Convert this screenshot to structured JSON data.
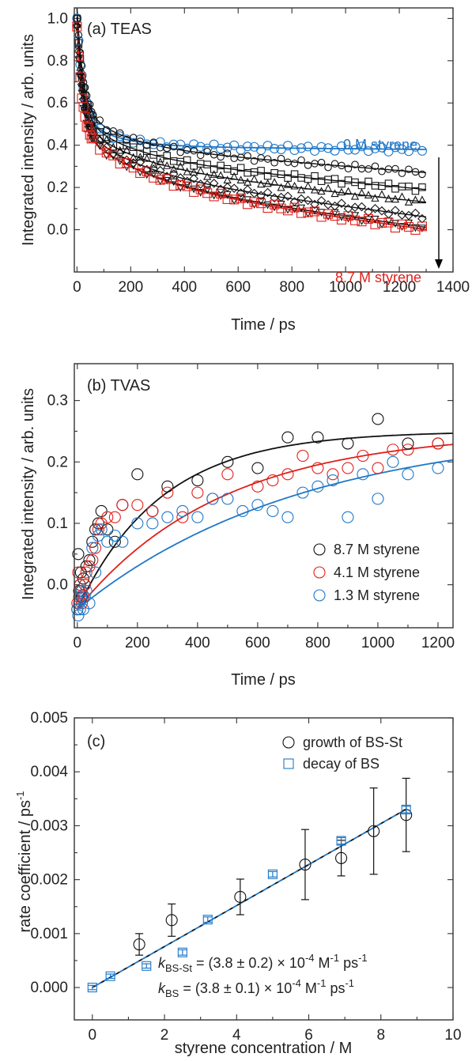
{
  "chart_data": [
    {
      "panel": "a",
      "type": "scatter",
      "panel_label": "(a) TEAS",
      "xlabel": "Time / ps",
      "ylabel": "Integrated intensity / arb. units",
      "xlim": [
        -10,
        1400
      ],
      "ylim": [
        -0.2,
        1.05
      ],
      "xticks": [
        0,
        200,
        400,
        600,
        800,
        1000,
        1200,
        1400
      ],
      "yticks": [
        0.0,
        0.2,
        0.4,
        0.6,
        0.8,
        1.0
      ],
      "ytick_labels": [
        "0.0",
        "0.2",
        "0.4",
        "0.6",
        "0.8",
        "1.0"
      ],
      "annotations": {
        "top_series": "0 M styrene",
        "bottom_series": "8.7 M styrene"
      },
      "colors": {
        "top": "#1f78c8",
        "bottom": "#e0201b",
        "middle": "#111111",
        "arrow": "#000000"
      },
      "series": [
        {
          "name": "0 M styrene",
          "marker": "circle",
          "color": "#1f78c8",
          "plateau": 0.38,
          "amp_fast": 0.47,
          "tau_fast": 22,
          "amp_slow": 0.14,
          "tau_slow": 130,
          "drift": 0.015
        },
        {
          "marker": "circle",
          "color": "#111111",
          "plateau": 0.27,
          "amp_fast": 0.47,
          "tau_fast": 22,
          "amp_slow": 0.18,
          "tau_slow": 160,
          "drift": 0.13
        },
        {
          "marker": "square",
          "color": "#111111",
          "plateau": 0.19,
          "amp_fast": 0.47,
          "tau_fast": 22,
          "amp_slow": 0.19,
          "tau_slow": 180,
          "drift": 0.16
        },
        {
          "marker": "triangle-up",
          "color": "#111111",
          "plateau": 0.13,
          "amp_fast": 0.47,
          "tau_fast": 22,
          "amp_slow": 0.2,
          "tau_slow": 200,
          "drift": 0.18
        },
        {
          "marker": "diamond",
          "color": "#111111",
          "plateau": 0.06,
          "amp_fast": 0.47,
          "tau_fast": 22,
          "amp_slow": 0.22,
          "tau_slow": 220,
          "drift": 0.21
        },
        {
          "marker": "triangle-down",
          "color": "#111111",
          "plateau": 0.01,
          "amp_fast": 0.48,
          "tau_fast": 20,
          "amp_slow": 0.24,
          "tau_slow": 240,
          "drift": 0.22
        },
        {
          "name": "8.7 M styrene",
          "marker": "square",
          "color": "#e0201b",
          "plateau": 0.0,
          "amp_fast": 0.5,
          "tau_fast": 18,
          "amp_slow": 0.25,
          "tau_slow": 250,
          "drift": 0.22
        }
      ]
    },
    {
      "panel": "b",
      "type": "scatter",
      "panel_label": "(b) TVAS",
      "xlabel": "Time / ps",
      "ylabel": "Integrated intensity / arb. units",
      "xlim": [
        -10,
        1250
      ],
      "ylim": [
        -0.07,
        0.36
      ],
      "xticks": [
        0,
        200,
        400,
        600,
        800,
        1000,
        1200
      ],
      "yticks": [
        0.0,
        0.1,
        0.2,
        0.3
      ],
      "ytick_labels": [
        "0.0",
        "0.1",
        "0.2",
        "0.3"
      ],
      "legend_position": "lower-right",
      "series": [
        {
          "name": "8.7 M styrene",
          "color": "#111111",
          "fit": {
            "y0": -0.04,
            "A": 0.29,
            "tau": 280
          },
          "points": [
            [
              0,
              -0.04
            ],
            [
              3,
              0.05
            ],
            [
              6,
              -0.01
            ],
            [
              9,
              0.0
            ],
            [
              12,
              0.02
            ],
            [
              15,
              -0.02
            ],
            [
              20,
              0.01
            ],
            [
              25,
              0.0
            ],
            [
              30,
              0.03
            ],
            [
              40,
              0.04
            ],
            [
              50,
              0.07
            ],
            [
              60,
              0.09
            ],
            [
              70,
              0.1
            ],
            [
              80,
              0.12
            ],
            [
              100,
              0.09
            ],
            [
              125,
              0.07
            ],
            [
              150,
              0.13
            ],
            [
              200,
              0.18
            ],
            [
              250,
              0.12
            ],
            [
              300,
              0.16
            ],
            [
              400,
              0.17
            ],
            [
              500,
              0.2
            ],
            [
              600,
              0.19
            ],
            [
              700,
              0.24
            ],
            [
              800,
              0.24
            ],
            [
              900,
              0.23
            ],
            [
              1000,
              0.27
            ],
            [
              1100,
              0.23
            ],
            [
              1200,
              0.23
            ]
          ]
        },
        {
          "name": "4.1 M styrene",
          "color": "#e0201b",
          "fit": {
            "y0": -0.04,
            "A": 0.29,
            "tau": 480
          },
          "points": [
            [
              0,
              -0.03
            ],
            [
              3,
              0.02
            ],
            [
              6,
              -0.02
            ],
            [
              9,
              0.0
            ],
            [
              12,
              -0.01
            ],
            [
              15,
              -0.03
            ],
            [
              20,
              -0.02
            ],
            [
              25,
              0.0
            ],
            [
              30,
              0.02
            ],
            [
              40,
              0.03
            ],
            [
              50,
              0.04
            ],
            [
              60,
              0.06
            ],
            [
              70,
              0.09
            ],
            [
              80,
              0.1
            ],
            [
              100,
              0.11
            ],
            [
              125,
              0.11
            ],
            [
              150,
              0.13
            ],
            [
              200,
              0.13
            ],
            [
              250,
              0.12
            ],
            [
              300,
              0.15
            ],
            [
              350,
              0.11
            ],
            [
              400,
              0.15
            ],
            [
              450,
              0.14
            ],
            [
              500,
              0.18
            ],
            [
              600,
              0.16
            ],
            [
              650,
              0.17
            ],
            [
              700,
              0.18
            ],
            [
              750,
              0.21
            ],
            [
              800,
              0.19
            ],
            [
              850,
              0.18
            ],
            [
              900,
              0.19
            ],
            [
              950,
              0.21
            ],
            [
              1000,
              0.19
            ],
            [
              1050,
              0.22
            ],
            [
              1100,
              0.22
            ],
            [
              1200,
              0.23
            ]
          ]
        },
        {
          "name": "1.3 M styrene",
          "color": "#1f78c8",
          "fit": {
            "y0": -0.04,
            "A": 0.3,
            "tau": 750
          },
          "points": [
            [
              0,
              -0.04
            ],
            [
              3,
              -0.05
            ],
            [
              6,
              -0.03
            ],
            [
              9,
              -0.04
            ],
            [
              12,
              -0.02
            ],
            [
              15,
              -0.01
            ],
            [
              20,
              -0.04
            ],
            [
              25,
              -0.02
            ],
            [
              30,
              -0.01
            ],
            [
              40,
              -0.03
            ],
            [
              50,
              0.06
            ],
            [
              60,
              0.02
            ],
            [
              70,
              0.08
            ],
            [
              80,
              0.09
            ],
            [
              100,
              0.07
            ],
            [
              125,
              0.08
            ],
            [
              150,
              0.07
            ],
            [
              200,
              0.1
            ],
            [
              250,
              0.1
            ],
            [
              300,
              0.11
            ],
            [
              350,
              0.12
            ],
            [
              400,
              0.11
            ],
            [
              450,
              0.14
            ],
            [
              500,
              0.14
            ],
            [
              550,
              0.12
            ],
            [
              600,
              0.13
            ],
            [
              650,
              0.12
            ],
            [
              700,
              0.11
            ],
            [
              750,
              0.15
            ],
            [
              800,
              0.16
            ],
            [
              850,
              0.17
            ],
            [
              900,
              0.11
            ],
            [
              950,
              0.18
            ],
            [
              1000,
              0.14
            ],
            [
              1050,
              0.2
            ],
            [
              1100,
              0.18
            ],
            [
              1200,
              0.19
            ]
          ]
        }
      ]
    },
    {
      "panel": "c",
      "type": "scatter",
      "panel_label": "(c)",
      "xlabel": "styrene concentration / M",
      "ylabel": "rate coefficient / ps",
      "ylabel_superscript": "-1",
      "xlim": [
        -0.5,
        10
      ],
      "ylim": [
        -0.0006,
        0.005
      ],
      "xticks": [
        0,
        2,
        4,
        6,
        8,
        10
      ],
      "yticks": [
        0.0,
        0.001,
        0.002,
        0.003,
        0.004,
        0.005
      ],
      "ytick_labels": [
        "0.000",
        "0.001",
        "0.002",
        "0.003",
        "0.004",
        "0.005"
      ],
      "legend_position": "top-right",
      "fit_slope": 0.00038,
      "series": [
        {
          "name": "growth of BS-St",
          "marker": "circle",
          "color": "#111111",
          "points": [
            {
              "x": 1.3,
              "y": 0.0008,
              "err": 0.0002
            },
            {
              "x": 2.2,
              "y": 0.00125,
              "err": 0.0003
            },
            {
              "x": 4.1,
              "y": 0.00168,
              "err": 0.00033
            },
            {
              "x": 5.9,
              "y": 0.00228,
              "err": 0.00065
            },
            {
              "x": 6.9,
              "y": 0.0024,
              "err": 0.00033
            },
            {
              "x": 7.8,
              "y": 0.0029,
              "err": 0.0008
            },
            {
              "x": 8.7,
              "y": 0.0032,
              "err": 0.00068
            }
          ]
        },
        {
          "name": "decay of BS",
          "marker": "square",
          "color": "#1f78c8",
          "points": [
            {
              "x": 0.0,
              "y": 0.0,
              "err": 4e-05
            },
            {
              "x": 0.5,
              "y": 0.00021,
              "err": 4e-05
            },
            {
              "x": 1.5,
              "y": 0.0004,
              "err": 4e-05
            },
            {
              "x": 2.5,
              "y": 0.00065,
              "err": 5e-05
            },
            {
              "x": 3.2,
              "y": 0.00126,
              "err": 5e-05
            },
            {
              "x": 5.0,
              "y": 0.0021,
              "err": 5e-05
            },
            {
              "x": 6.9,
              "y": 0.00272,
              "err": 6e-05
            },
            {
              "x": 8.7,
              "y": 0.0033,
              "err": 6e-05
            }
          ]
        }
      ],
      "annotations": [
        {
          "symbol": "k",
          "subscript": "BS-St",
          "text": " = (3.8 ± 0.2) × 10",
          "exp": "-4",
          "unit1": " M",
          "unit1_exp": "-1",
          "unit2": " ps",
          "unit2_exp": "-1"
        },
        {
          "symbol": "k",
          "subscript": "BS",
          "text": " = (3.8 ± 0.1) × 10",
          "exp": "-4",
          "unit1": " M",
          "unit1_exp": "-1",
          "unit2": " ps",
          "unit2_exp": "-1"
        }
      ]
    }
  ]
}
